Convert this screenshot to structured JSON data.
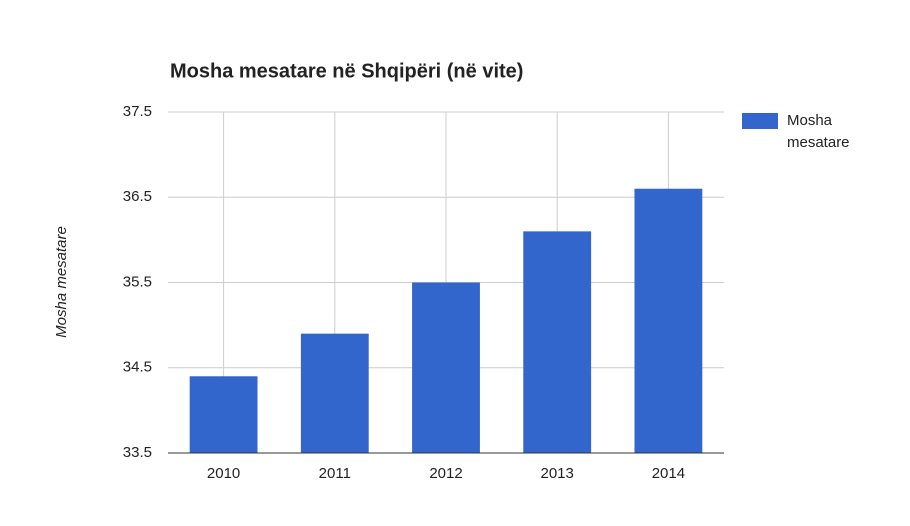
{
  "chart_data": {
    "type": "bar",
    "title": "Mosha mesatare në Shqipëri (në vite)",
    "y_label": "Mosha mesatare",
    "categories": [
      "2010",
      "2011",
      "2012",
      "2013",
      "2014"
    ],
    "series": [
      {
        "name": "Mosha mesatare",
        "color": "#3366cc",
        "values": [
          34.4,
          34.9,
          35.5,
          36.1,
          36.6
        ]
      }
    ],
    "ylim": [
      33.5,
      37.5
    ],
    "yticks": [
      33.5,
      34.5,
      35.5,
      36.5,
      37.5
    ],
    "grid": true,
    "legend": "right"
  }
}
